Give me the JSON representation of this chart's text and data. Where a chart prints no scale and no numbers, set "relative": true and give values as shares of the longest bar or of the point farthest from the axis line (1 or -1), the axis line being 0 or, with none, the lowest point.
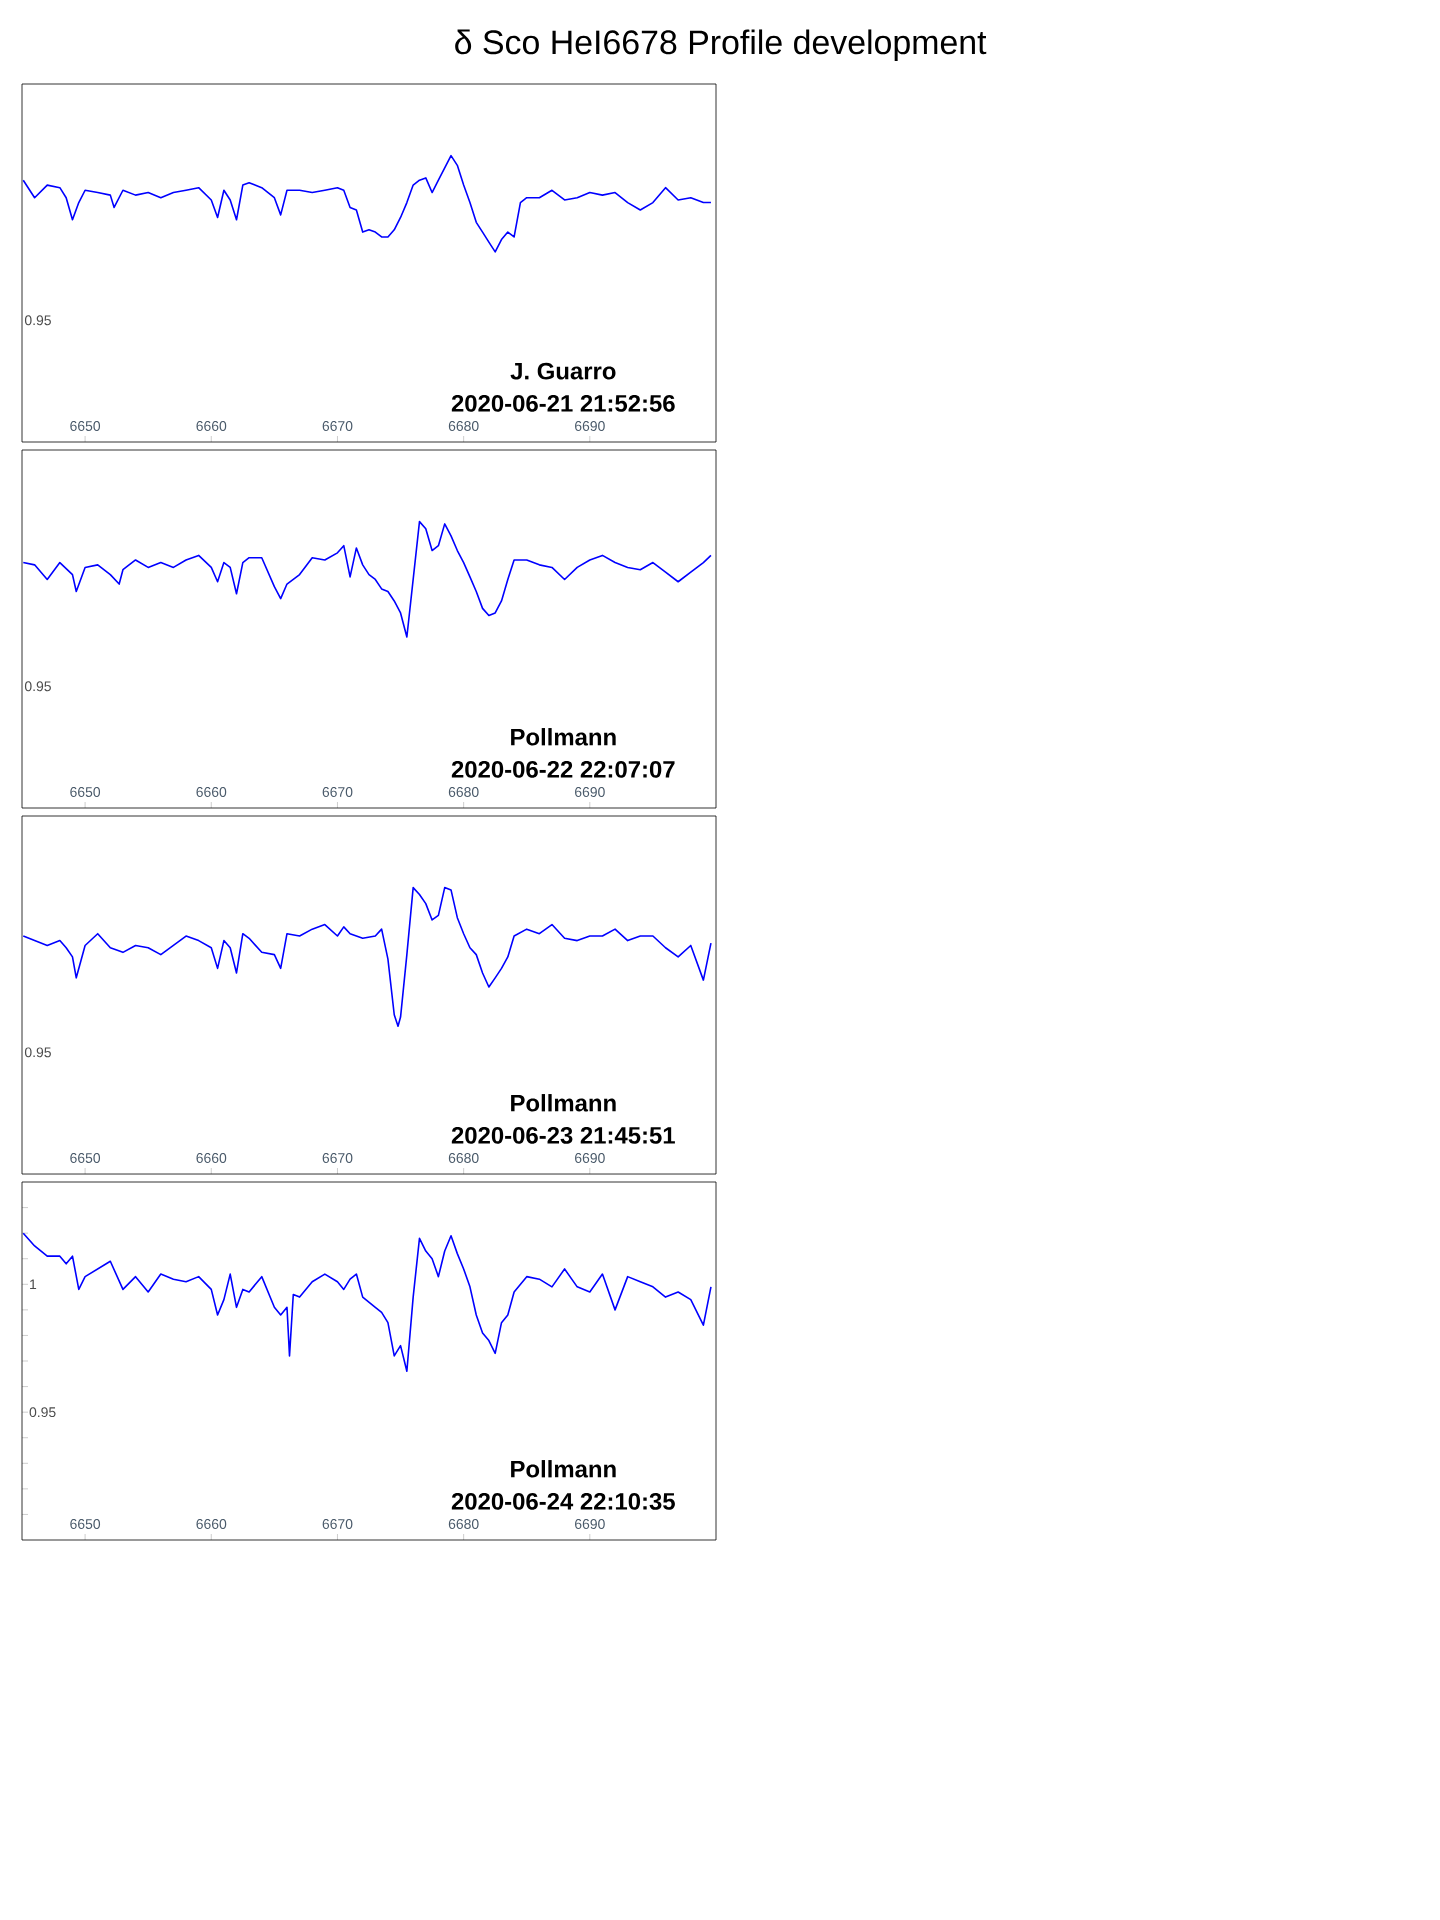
{
  "chart_data": [
    {
      "type": "line",
      "title": "δ Sco HeI6678 Profile development",
      "annotations": [
        "J. Guarro",
        "2020-06-21 21:52:56",
        "0.95"
      ],
      "relative": true,
      "xlim": [
        6645,
        6700
      ],
      "xticks": [
        6650,
        6660,
        6670,
        6680,
        6690
      ],
      "x": [
        6645.1,
        6646,
        6647,
        6648,
        6648.5,
        6649,
        6649.5,
        6650,
        6651,
        6652,
        6652.3,
        6653,
        6654,
        6655,
        6656,
        6657,
        6658,
        6659,
        6660,
        6660.5,
        6661,
        6661.5,
        6662,
        6662.5,
        6663,
        6664,
        6665,
        6665.5,
        6666,
        6667,
        6668,
        6669,
        6670,
        6670.5,
        6671,
        6671.5,
        6672,
        6672.5,
        6673,
        6673.5,
        6674,
        6674.5,
        6675,
        6675.5,
        6676,
        6676.5,
        6677,
        6677.5,
        6678,
        6678.5,
        6679,
        6679.5,
        6680,
        6680.5,
        6681,
        6681.5,
        6682,
        6682.5,
        6683,
        6683.5,
        6684,
        6684.5,
        6685,
        6686,
        6687,
        6688,
        6689,
        6690,
        6691,
        6692,
        6693,
        6694,
        6695,
        6696,
        6697,
        6698,
        6699,
        6699.6
      ],
      "series": [
        {
          "color": "#0000ff",
          "values": [
            0.914,
            0.853,
            0.897,
            0.888,
            0.853,
            0.776,
            0.836,
            0.879,
            0.871,
            0.862,
            0.819,
            0.879,
            0.862,
            0.871,
            0.853,
            0.871,
            0.879,
            0.888,
            0.845,
            0.784,
            0.879,
            0.845,
            0.776,
            0.897,
            0.905,
            0.888,
            0.853,
            0.793,
            0.879,
            0.879,
            0.871,
            0.879,
            0.888,
            0.879,
            0.819,
            0.81,
            0.733,
            0.741,
            0.733,
            0.716,
            0.716,
            0.741,
            0.784,
            0.836,
            0.897,
            0.914,
            0.922,
            0.871,
            0.914,
            0.957,
            1,
            0.966,
            0.897,
            0.836,
            0.767,
            0.733,
            0.698,
            0.664,
            0.707,
            0.733,
            0.716,
            0.836,
            0.853,
            0.853,
            0.879,
            0.845,
            0.853,
            0.871,
            0.862,
            0.871,
            0.836,
            0.81,
            0.836,
            0.888,
            0.845,
            0.853,
            0.836,
            0.836
          ]
        }
      ]
    },
    {
      "type": "line",
      "annotations": [
        "Pollmann",
        "2020-06-22 22:07:07",
        "0.95"
      ],
      "relative": true,
      "xlim": [
        6645,
        6700
      ],
      "xticks": [
        6650,
        6660,
        6670,
        6680,
        6690
      ],
      "x": [
        6645.1,
        6646,
        6647,
        6648,
        6649,
        6649.3,
        6650,
        6651,
        6652,
        6652.7,
        6653,
        6654,
        6655,
        6656,
        6657,
        6658,
        6659,
        6660,
        6660.5,
        6661,
        6661.5,
        6662,
        6662.5,
        6663,
        6664,
        6665,
        6665.5,
        6666,
        6667,
        6668,
        6669,
        6670,
        6670.5,
        6671,
        6671.5,
        6672,
        6672.5,
        6673,
        6673.5,
        6674,
        6674.5,
        6675,
        6675.5,
        6676,
        6676.5,
        6677,
        6677.5,
        6678,
        6678.5,
        6679,
        6679.5,
        6680,
        6680.5,
        6681,
        6681.5,
        6682,
        6682.5,
        6683,
        6683.5,
        6684,
        6685,
        6686,
        6687,
        6688,
        6689,
        6690,
        6691,
        6692,
        6693,
        6694,
        6695,
        6696,
        6697,
        6698,
        6699,
        6699.6
      ],
      "series": [
        {
          "color": "#0000ff",
          "values": [
            0.857,
            0.849,
            0.798,
            0.857,
            0.815,
            0.756,
            0.84,
            0.849,
            0.815,
            0.782,
            0.832,
            0.866,
            0.84,
            0.857,
            0.84,
            0.866,
            0.882,
            0.84,
            0.79,
            0.857,
            0.84,
            0.748,
            0.857,
            0.874,
            0.874,
            0.773,
            0.731,
            0.782,
            0.815,
            0.874,
            0.866,
            0.891,
            0.916,
            0.807,
            0.908,
            0.849,
            0.815,
            0.798,
            0.765,
            0.756,
            0.723,
            0.681,
            0.597,
            0.798,
            1,
            0.975,
            0.899,
            0.916,
            0.992,
            0.95,
            0.899,
            0.857,
            0.807,
            0.756,
            0.697,
            0.672,
            0.681,
            0.723,
            0.798,
            0.866,
            0.866,
            0.849,
            0.84,
            0.798,
            0.84,
            0.866,
            0.882,
            0.857,
            0.84,
            0.832,
            0.857,
            0.824,
            0.79,
            0.824,
            0.857,
            0.882
          ]
        }
      ]
    },
    {
      "type": "line",
      "annotations": [
        "Pollmann",
        "2020-06-23 21:45:51",
        "0.95"
      ],
      "relative": true,
      "xlim": [
        6645,
        6700
      ],
      "xticks": [
        6650,
        6660,
        6670,
        6680,
        6690
      ],
      "x": [
        6645.1,
        6646,
        6647,
        6648,
        6648.5,
        6649,
        6649.3,
        6650,
        6651,
        6652,
        6653,
        6654,
        6655,
        6656,
        6657,
        6658,
        6659,
        6660,
        6660.5,
        6661,
        6661.5,
        6662,
        6662.5,
        6663,
        6664,
        6665,
        6665.5,
        6666,
        6667,
        6668,
        6669,
        6670,
        6670.5,
        6671,
        6671.5,
        6672,
        6673,
        6673.5,
        6674,
        6674.5,
        6674.8,
        6675,
        6675.5,
        6676,
        6676.5,
        6677,
        6677.5,
        6678,
        6678.5,
        6679,
        6679.5,
        6680,
        6680.5,
        6681,
        6681.5,
        6682,
        6682.5,
        6683,
        6683.5,
        6684,
        6685,
        6686,
        6687,
        6688,
        6689,
        6690,
        6691,
        6692,
        6693,
        6694,
        6695,
        6696,
        6697,
        6698,
        6699,
        6699.6
      ],
      "series": [
        {
          "color": "#0000ff",
          "values": [
            0.831,
            0.815,
            0.798,
            0.815,
            0.79,
            0.758,
            0.685,
            0.798,
            0.839,
            0.79,
            0.774,
            0.798,
            0.79,
            0.766,
            0.798,
            0.831,
            0.815,
            0.79,
            0.718,
            0.815,
            0.79,
            0.702,
            0.839,
            0.823,
            0.774,
            0.766,
            0.718,
            0.839,
            0.831,
            0.855,
            0.871,
            0.831,
            0.863,
            0.839,
            0.831,
            0.823,
            0.831,
            0.855,
            0.75,
            0.556,
            0.516,
            0.548,
            0.766,
            1,
            0.976,
            0.944,
            0.887,
            0.903,
            1,
            0.992,
            0.895,
            0.839,
            0.79,
            0.766,
            0.702,
            0.653,
            0.685,
            0.718,
            0.758,
            0.831,
            0.855,
            0.839,
            0.871,
            0.823,
            0.815,
            0.831,
            0.831,
            0.855,
            0.815,
            0.831,
            0.831,
            0.79,
            0.758,
            0.798,
            0.677,
            0.806
          ]
        }
      ]
    },
    {
      "type": "line",
      "annotations": [
        "Pollmann",
        "2020-06-24 22:10:35"
      ],
      "xlim": [
        6645,
        6700
      ],
      "ylim": [
        0.9,
        1.04
      ],
      "xticks": [
        6650,
        6660,
        6670,
        6680,
        6690
      ],
      "yticks": [
        {
          "value": 0.91,
          "label": null
        },
        {
          "value": 0.92,
          "label": null
        },
        {
          "value": 0.93,
          "label": null
        },
        {
          "value": 0.94,
          "label": null
        },
        0.95,
        {
          "value": 0.96,
          "label": null
        },
        {
          "value": 0.97,
          "label": null
        },
        {
          "value": 0.98,
          "label": null
        },
        {
          "value": 0.99,
          "label": null
        },
        1,
        {
          "value": 1.01,
          "label": null
        },
        {
          "value": 1.02,
          "label": null
        },
        {
          "value": 1.03,
          "label": null
        }
      ],
      "x": [
        6645.1,
        6646,
        6647,
        6648,
        6648.5,
        6649,
        6649.5,
        6650,
        6651,
        6652,
        6653,
        6654,
        6655,
        6656,
        6657,
        6658,
        6659,
        6660,
        6660.5,
        6661,
        6661.5,
        6662,
        6662.5,
        6663,
        6664,
        6665,
        6665.5,
        6666,
        6666.2,
        6666.5,
        6667,
        6668,
        6669,
        6670,
        6670.5,
        6671,
        6671.5,
        6672,
        6673,
        6673.5,
        6674,
        6674.5,
        6675,
        6675.5,
        6676,
        6676.5,
        6677,
        6677.5,
        6678,
        6678.5,
        6679,
        6679.5,
        6680,
        6680.5,
        6681,
        6681.5,
        6682,
        6682.5,
        6683,
        6683.5,
        6684,
        6685,
        6686,
        6687,
        6688,
        6689,
        6690,
        6691,
        6692,
        6693,
        6694,
        6695,
        6696,
        6697,
        6698,
        6699,
        6699.6
      ],
      "series": [
        {
          "color": "#0000ff",
          "values": [
            1.02,
            1.015,
            1.011,
            1.011,
            1.008,
            1.011,
            0.998,
            1.003,
            1.006,
            1.009,
            0.998,
            1.003,
            0.997,
            1.004,
            1.002,
            1.001,
            1.003,
            0.998,
            0.988,
            0.994,
            1.004,
            0.991,
            0.998,
            0.997,
            1.003,
            0.991,
            0.988,
            0.991,
            0.972,
            0.996,
            0.995,
            1.001,
            1.004,
            1.001,
            0.998,
            1.002,
            1.004,
            0.995,
            0.991,
            0.989,
            0.985,
            0.972,
            0.976,
            0.966,
            0.995,
            1.018,
            1.013,
            1.01,
            1.003,
            1.013,
            1.019,
            1.012,
            1.006,
            0.999,
            0.988,
            0.981,
            0.978,
            0.973,
            0.985,
            0.988,
            0.997,
            1.003,
            1.002,
            0.999,
            1.006,
            0.999,
            0.997,
            1.004,
            0.99,
            1.003,
            1.001,
            0.999,
            0.995,
            0.997,
            0.994,
            0.984,
            0.999
          ]
        }
      ]
    }
  ]
}
